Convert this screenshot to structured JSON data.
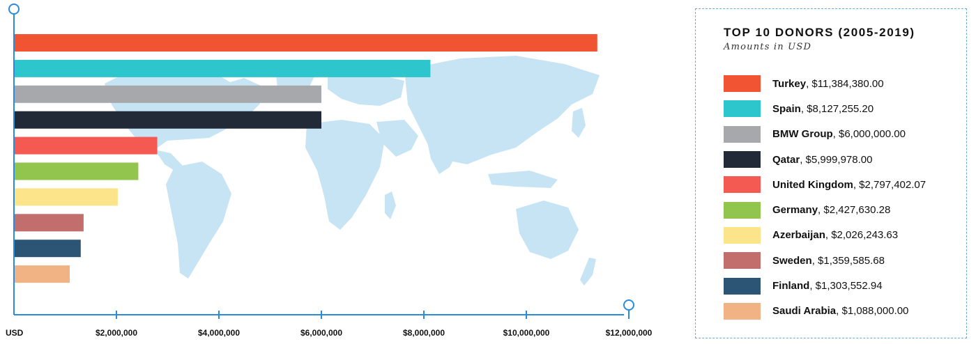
{
  "chart_data": {
    "type": "bar",
    "orientation": "horizontal",
    "title": "TOP 10 DONORS (2005-2019)",
    "subtitle": "Amounts in USD",
    "xlabel": "USD",
    "xlim": [
      0,
      12000000
    ],
    "x_ticks": [
      2000000,
      4000000,
      6000000,
      8000000,
      10000000,
      12000000
    ],
    "x_tick_labels": [
      "$2,000,000",
      "$4,000,000",
      "$6,000,000",
      "$8,000,000",
      "$10,000,000",
      "$12,000,000"
    ],
    "grid": false,
    "legend_position": "right",
    "categories": [
      "Turkey",
      "Spain",
      "BMW Group",
      "Qatar",
      "United Kingdom",
      "Germany",
      "Azerbaijan",
      "Sweden",
      "Finland",
      "Saudi Arabia"
    ],
    "values": [
      11384380.0,
      8127255.2,
      6000000.0,
      5999978.0,
      2797402.07,
      2427630.28,
      2026243.63,
      1359585.68,
      1303552.94,
      1088000.0
    ],
    "value_labels": [
      "$11,384,380.00",
      "$8,127,255.20",
      "$6,000,000.00",
      "$5,999,978.00",
      "$2,797,402.07",
      "$2,427,630.28",
      "$2,026,243.63",
      "$1,359,585.68",
      "$1,303,552.94",
      "$1,088,000.00"
    ],
    "colors": [
      "#f05432",
      "#2dc6cc",
      "#a7a8ab",
      "#222a38",
      "#f45a52",
      "#92c54d",
      "#fbe489",
      "#c26e6c",
      "#2c5474",
      "#f2b384"
    ]
  },
  "background": {
    "icon": "world-map-icon",
    "color": "#c7e4f4"
  },
  "axis_color": "#2a8bd8"
}
